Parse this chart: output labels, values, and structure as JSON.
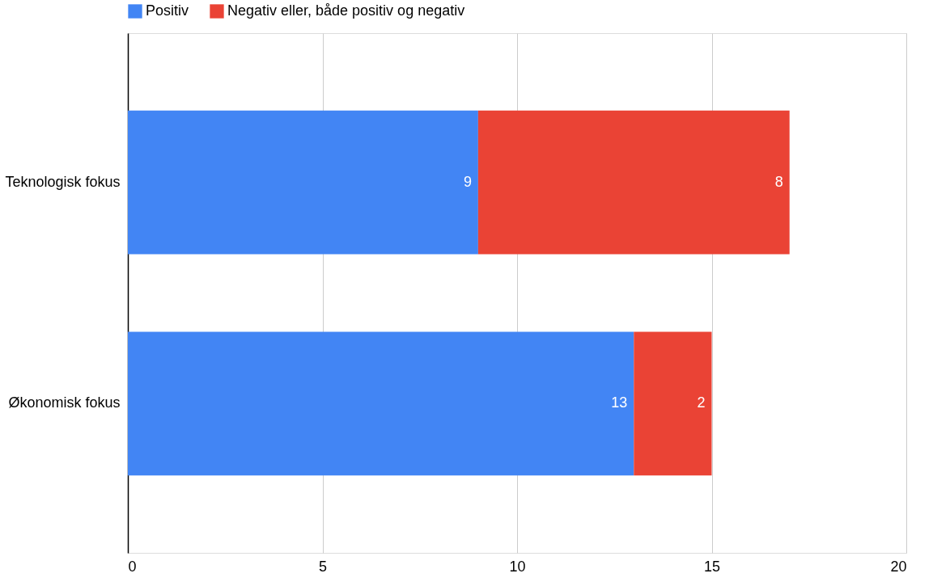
{
  "chart_data": {
    "type": "bar",
    "orientation": "horizontal",
    "stacked": true,
    "categories": [
      "Teknologisk fokus",
      "Økonomisk fokus"
    ],
    "series": [
      {
        "name": "Positiv",
        "color": "#4285f4",
        "values": [
          9,
          13
        ]
      },
      {
        "name": "Negativ eller, både positiv og negativ",
        "color": "#ea4335",
        "values": [
          8,
          2
        ]
      }
    ],
    "xlim": [
      0,
      20
    ],
    "xticks": [
      0,
      5,
      10,
      15,
      20
    ],
    "grid": "x",
    "legend": "top",
    "data_labels": true
  }
}
